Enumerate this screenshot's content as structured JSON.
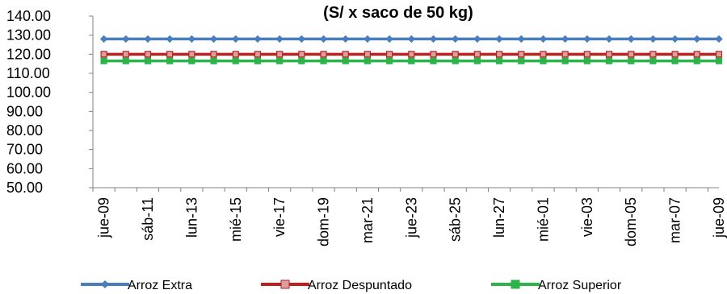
{
  "chart_data": {
    "type": "line",
    "title": "(S/ x saco de 50 kg)",
    "xlabel": "",
    "ylabel": "",
    "ylim": [
      50,
      140
    ],
    "yticks": [
      "140.00",
      "130.00",
      "120.00",
      "110.00",
      "100.00",
      "90.00",
      "80.00",
      "70.00",
      "60.00",
      "50.00"
    ],
    "categories": [
      "jue-09",
      "sáb-11",
      "lun-13",
      "mié-15",
      "vie-17",
      "dom-19",
      "mar-21",
      "jue-23",
      "sáb-25",
      "lun-27",
      "mié-01",
      "vie-03",
      "dom-05",
      "mar-07",
      "jue-09"
    ],
    "point_count": 29,
    "legend_position": "bottom",
    "series": [
      {
        "name": "Arroz Extra",
        "value": 128,
        "color": "#4a7ebb",
        "marker": "diamond"
      },
      {
        "name": "Arroz Despuntado",
        "value": 120,
        "color": "#be1e1e",
        "marker": "square"
      },
      {
        "name": "Arroz Superior",
        "value": 116.5,
        "color": "#2db34a",
        "marker": "square"
      }
    ]
  }
}
